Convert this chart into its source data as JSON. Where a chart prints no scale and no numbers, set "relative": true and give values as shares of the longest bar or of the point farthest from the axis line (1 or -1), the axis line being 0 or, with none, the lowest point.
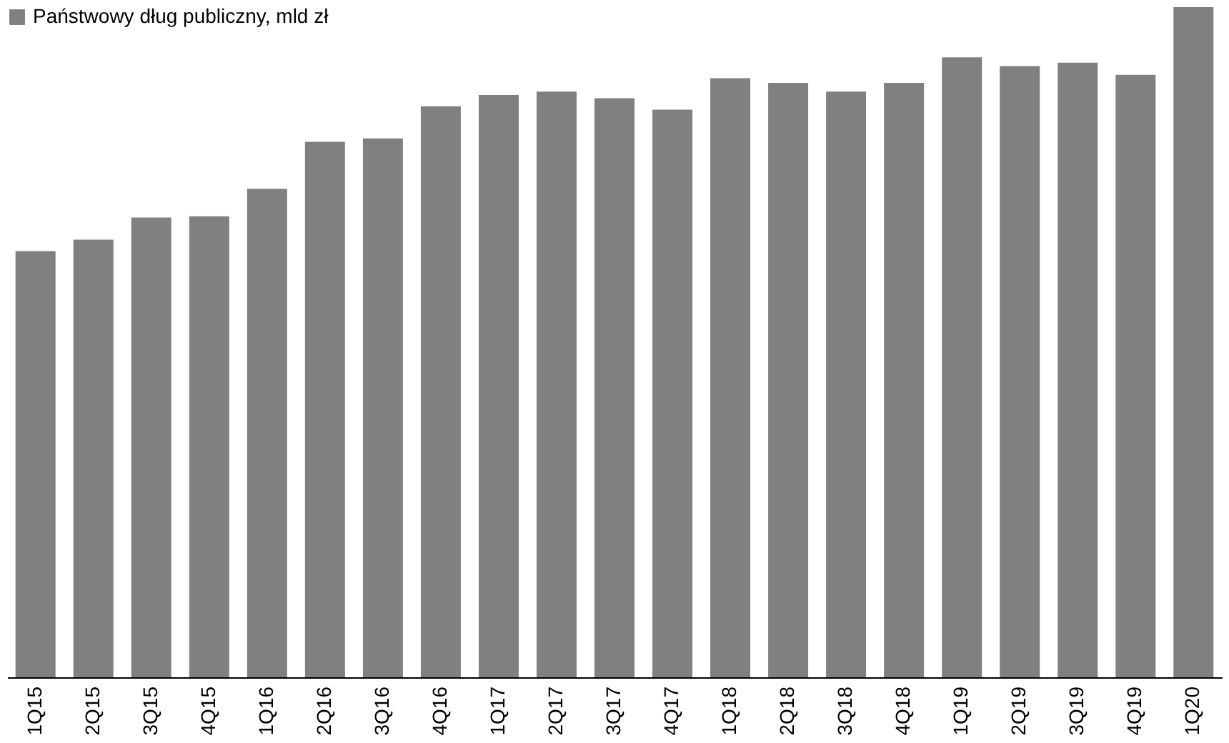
{
  "chart_data": {
    "type": "bar",
    "relative": true,
    "legend": "top left",
    "grid": false,
    "categories": [
      "1Q15",
      "2Q15",
      "3Q15",
      "4Q15",
      "1Q16",
      "2Q16",
      "3Q16",
      "4Q16",
      "1Q17",
      "2Q17",
      "3Q17",
      "4Q17",
      "1Q18",
      "2Q18",
      "3Q18",
      "4Q18",
      "1Q19",
      "2Q19",
      "3Q19",
      "4Q19",
      "1Q20"
    ],
    "series": [
      {
        "name": "Państwowy dług publiczny, mld zł",
        "color": "#808080",
        "values": [
          0.636,
          0.653,
          0.686,
          0.688,
          0.729,
          0.799,
          0.804,
          0.852,
          0.869,
          0.874,
          0.864,
          0.847,
          0.894,
          0.887,
          0.874,
          0.887,
          0.925,
          0.912,
          0.917,
          0.899,
          1.0
        ]
      }
    ]
  }
}
